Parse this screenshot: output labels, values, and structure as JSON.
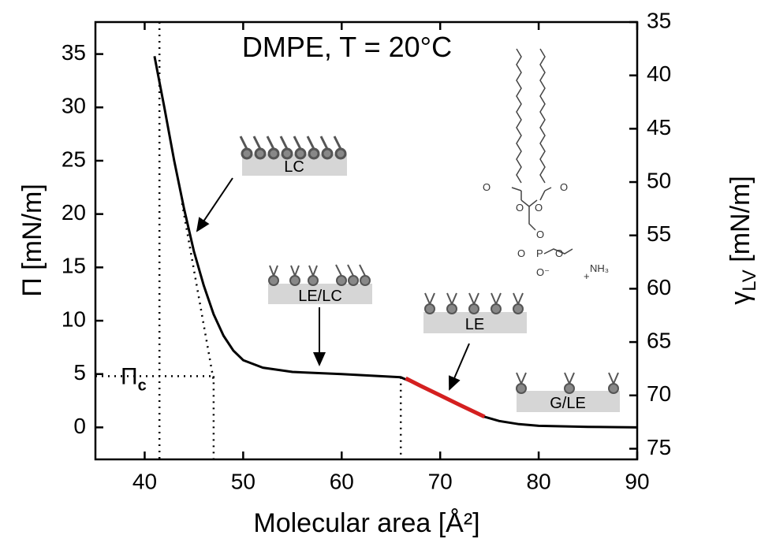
{
  "chart_data": {
    "type": "line",
    "title": "DMPE, T = 20°C",
    "xlabel": "Molecular area [Å²]",
    "ylabel": "Π [mN/m]",
    "y2label": {
      "main": "γ",
      "sub": "LV",
      "unit": " [mN/m]"
    },
    "xlim": [
      35,
      90
    ],
    "xticks": [
      40,
      50,
      60,
      70,
      80,
      90
    ],
    "ylim": [
      -3,
      38
    ],
    "yticks": [
      0,
      5,
      10,
      15,
      20,
      25,
      30,
      35
    ],
    "y2lim": [
      76,
      35
    ],
    "y2ticks": [
      35,
      40,
      45,
      50,
      55,
      60,
      65,
      70,
      75
    ],
    "series": [
      {
        "color": "#000000",
        "width": 3,
        "x": [
          41,
          42,
          43,
          44,
          45,
          46,
          47,
          48,
          49,
          50,
          52,
          55,
          60,
          66,
          68,
          70,
          72,
          74.5,
          76,
          78,
          80,
          85,
          90
        ],
        "values": [
          34.8,
          30,
          25,
          20.5,
          16.5,
          13.3,
          10.6,
          8.6,
          7.2,
          6.3,
          5.6,
          5.2,
          5.0,
          4.7,
          3.9,
          3.0,
          2.1,
          1.0,
          0.6,
          0.3,
          0.15,
          0.05,
          0
        ]
      },
      {
        "color": "#d42020",
        "width": 5,
        "x": [
          66.5,
          68,
          70,
          72,
          74.5
        ],
        "values": [
          4.6,
          3.9,
          3.0,
          2.1,
          1.0
        ]
      }
    ],
    "vlines": [
      {
        "x": 41.5,
        "top": 38
      },
      {
        "x": 47,
        "top": 4.8
      },
      {
        "x": 66,
        "top": 4.7
      }
    ],
    "hline": {
      "y": 4.8,
      "to": 47,
      "label": "Π",
      "sub": "c"
    },
    "tangent": {
      "x": [
        43.8,
        47
      ],
      "values": [
        21,
        4.4
      ]
    },
    "phases": [
      "LC",
      "LE/LC",
      "LE",
      "G/LE"
    ],
    "molecule_labels": [
      "O",
      "O",
      "O",
      "O",
      "O",
      "P",
      "O",
      "O",
      "O⁻",
      "NH₃",
      "+"
    ]
  }
}
